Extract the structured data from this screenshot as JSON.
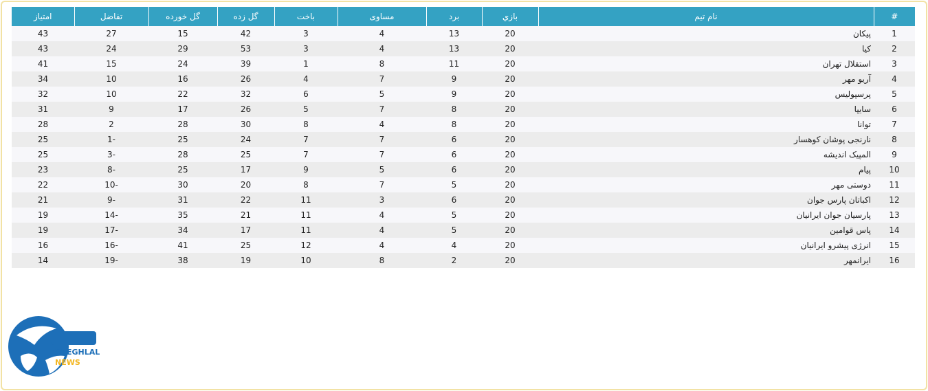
{
  "table": {
    "header": [
      "#",
      "نام تیم",
      "بازي",
      "برد",
      "مساوی",
      "باخت",
      "گل زده",
      "گل خورده",
      "تفاضل",
      "امتیاز"
    ],
    "rows": [
      [
        1,
        "پیکان",
        20,
        13,
        4,
        3,
        42,
        15,
        27,
        43
      ],
      [
        2,
        "کیا",
        20,
        13,
        4,
        3,
        53,
        29,
        24,
        43
      ],
      [
        3,
        "استقلال تهران",
        20,
        11,
        8,
        1,
        39,
        24,
        15,
        41
      ],
      [
        4,
        "آریو مهر",
        20,
        9,
        7,
        4,
        26,
        16,
        10,
        34
      ],
      [
        5,
        "پرسپولیس",
        20,
        9,
        5,
        6,
        32,
        22,
        10,
        32
      ],
      [
        6,
        "سایپا",
        20,
        8,
        7,
        5,
        26,
        17,
        9,
        31
      ],
      [
        7,
        "توانا",
        20,
        8,
        4,
        8,
        30,
        28,
        2,
        28
      ],
      [
        8,
        "نارنجی پوشان کوهسار",
        20,
        6,
        7,
        7,
        24,
        25,
        -1,
        25
      ],
      [
        9,
        "المپیک اندیشه",
        20,
        6,
        7,
        7,
        25,
        28,
        -3,
        25
      ],
      [
        10,
        "پیام",
        20,
        6,
        5,
        9,
        17,
        25,
        -8,
        23
      ],
      [
        11,
        "دوستی مهر",
        20,
        5,
        7,
        8,
        20,
        30,
        -10,
        22
      ],
      [
        12,
        "اکباتان پارس جوان",
        20,
        6,
        3,
        11,
        22,
        31,
        -9,
        21
      ],
      [
        13,
        "پارسیان جوان ایرانیان",
        20,
        5,
        4,
        11,
        21,
        35,
        -14,
        19
      ],
      [
        14,
        "پاس قوامین",
        20,
        5,
        4,
        11,
        17,
        34,
        -17,
        19
      ],
      [
        15,
        "انرژی پیشرو ایرانیان",
        20,
        4,
        4,
        12,
        25,
        41,
        -16,
        16
      ],
      [
        16,
        "ایرانمهر",
        20,
        2,
        8,
        10,
        19,
        38,
        -19,
        14
      ]
    ]
  },
  "logo": {
    "brand": "ESTEGHLAL",
    "sub": "NEWS"
  }
}
